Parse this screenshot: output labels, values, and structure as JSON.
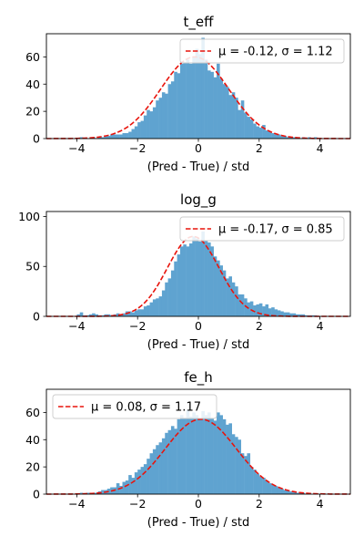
{
  "chart_data": [
    {
      "type": "histogram",
      "title": "t_eff",
      "xlabel": "(Pred - True) / std",
      "xlim": [
        -5,
        5
      ],
      "ylim": [
        0,
        77
      ],
      "xticks": [
        -4,
        -2,
        0,
        2,
        4
      ],
      "yticks": [
        0,
        20,
        40,
        60
      ],
      "xtick_labels": [
        "−4",
        "−2",
        "0",
        "2",
        "4"
      ],
      "ytick_labels": [
        "0",
        "20",
        "40",
        "60"
      ],
      "bin_width": 0.1,
      "bins_x": [
        -4.0,
        -3.9,
        -3.8,
        -3.7,
        -3.6,
        -3.5,
        -3.4,
        -3.3,
        -3.2,
        -3.1,
        -3.0,
        -2.9,
        -2.8,
        -2.7,
        -2.6,
        -2.5,
        -2.4,
        -2.3,
        -2.2,
        -2.1,
        -2.0,
        -1.9,
        -1.8,
        -1.7,
        -1.6,
        -1.5,
        -1.4,
        -1.3,
        -1.2,
        -1.1,
        -1.0,
        -0.9,
        -0.8,
        -0.7,
        -0.6,
        -0.5,
        -0.4,
        -0.3,
        -0.2,
        -0.1,
        0.0,
        0.1,
        0.2,
        0.3,
        0.4,
        0.5,
        0.6,
        0.7,
        0.8,
        0.9,
        1.0,
        1.1,
        1.2,
        1.3,
        1.4,
        1.5,
        1.6,
        1.7,
        1.8,
        1.9,
        2.0,
        2.1,
        2.2,
        2.3,
        2.4,
        2.5,
        2.6,
        2.7,
        2.8,
        2.9,
        3.0,
        3.1,
        3.2,
        3.3,
        3.4,
        3.5,
        3.6,
        3.7,
        3.8,
        3.9
      ],
      "counts": [
        0,
        1,
        0,
        0,
        0,
        1,
        0,
        1,
        1,
        2,
        2,
        3,
        3,
        3,
        3,
        4,
        4,
        5,
        7,
        9,
        12,
        13,
        17,
        21,
        20,
        23,
        28,
        30,
        34,
        33,
        40,
        42,
        49,
        48,
        55,
        56,
        58,
        55,
        60,
        66,
        62,
        74,
        58,
        50,
        49,
        45,
        55,
        44,
        40,
        38,
        32,
        34,
        30,
        21,
        28,
        19,
        16,
        14,
        11,
        9,
        8,
        10,
        6,
        5,
        4,
        3,
        3,
        2,
        2,
        1,
        1,
        1,
        1,
        0,
        1,
        0,
        1,
        0,
        1,
        0
      ],
      "fit": {
        "mu": -0.12,
        "sigma": 1.12,
        "amplitude": 60
      },
      "fit_label": "μ = -0.12, σ = 1.12",
      "legend_position": "upper right",
      "colors": {
        "bars": "#5fa3d0",
        "fit": "#e8140c"
      }
    },
    {
      "type": "histogram",
      "title": "log_g",
      "xlabel": "(Pred - True) / std",
      "xlim": [
        -5,
        5
      ],
      "ylim": [
        0,
        105
      ],
      "xticks": [
        -4,
        -2,
        0,
        2,
        4
      ],
      "yticks": [
        0,
        50,
        100
      ],
      "xtick_labels": [
        "−4",
        "−2",
        "0",
        "2",
        "4"
      ],
      "ytick_labels": [
        "0",
        "50",
        "100"
      ],
      "bin_width": 0.1,
      "bins_x": [
        -4.0,
        -3.9,
        -3.8,
        -3.7,
        -3.6,
        -3.5,
        -3.4,
        -3.3,
        -3.2,
        -3.1,
        -3.0,
        -2.9,
        -2.8,
        -2.7,
        -2.6,
        -2.5,
        -2.4,
        -2.3,
        -2.2,
        -2.1,
        -2.0,
        -1.9,
        -1.8,
        -1.7,
        -1.6,
        -1.5,
        -1.4,
        -1.3,
        -1.2,
        -1.1,
        -1.0,
        -0.9,
        -0.8,
        -0.7,
        -0.6,
        -0.5,
        -0.4,
        -0.3,
        -0.2,
        -0.1,
        0.0,
        0.1,
        0.2,
        0.3,
        0.4,
        0.5,
        0.6,
        0.7,
        0.8,
        0.9,
        1.0,
        1.1,
        1.2,
        1.3,
        1.4,
        1.5,
        1.6,
        1.7,
        1.8,
        1.9,
        2.0,
        2.1,
        2.2,
        2.3,
        2.4,
        2.5,
        2.6,
        2.7,
        2.8,
        2.9,
        3.0,
        3.1,
        3.2,
        3.3,
        3.4,
        3.5,
        3.6,
        3.7,
        3.8,
        3.9
      ],
      "counts": [
        2,
        4,
        1,
        1,
        2,
        3,
        2,
        1,
        1,
        2,
        2,
        1,
        2,
        3,
        2,
        3,
        5,
        5,
        4,
        6,
        7,
        7,
        10,
        11,
        14,
        17,
        18,
        20,
        26,
        34,
        38,
        46,
        55,
        62,
        70,
        72,
        70,
        73,
        80,
        78,
        75,
        85,
        76,
        74,
        70,
        60,
        56,
        51,
        46,
        38,
        40,
        34,
        30,
        22,
        22,
        18,
        14,
        15,
        11,
        12,
        13,
        10,
        12,
        8,
        9,
        7,
        6,
        5,
        4,
        4,
        3,
        3,
        2,
        2,
        2,
        1,
        1,
        1,
        1,
        0
      ],
      "fit": {
        "mu": -0.17,
        "sigma": 0.85,
        "amplitude": 80
      },
      "fit_label": "μ = -0.17, σ = 0.85",
      "legend_position": "upper right",
      "colors": {
        "bars": "#5fa3d0",
        "fit": "#e8140c"
      }
    },
    {
      "type": "histogram",
      "title": "fe_h",
      "xlabel": "(Pred - True) / std",
      "xlim": [
        -5,
        5
      ],
      "ylim": [
        0,
        77
      ],
      "xticks": [
        -4,
        -2,
        0,
        2,
        4
      ],
      "yticks": [
        0,
        20,
        40,
        60
      ],
      "xtick_labels": [
        "−4",
        "−2",
        "0",
        "2",
        "4"
      ],
      "ytick_labels": [
        "0",
        "20",
        "40",
        "60"
      ],
      "bin_width": 0.1,
      "bins_x": [
        -4.0,
        -3.9,
        -3.8,
        -3.7,
        -3.6,
        -3.5,
        -3.4,
        -3.3,
        -3.2,
        -3.1,
        -3.0,
        -2.9,
        -2.8,
        -2.7,
        -2.6,
        -2.5,
        -2.4,
        -2.3,
        -2.2,
        -2.1,
        -2.0,
        -1.9,
        -1.8,
        -1.7,
        -1.6,
        -1.5,
        -1.4,
        -1.3,
        -1.2,
        -1.1,
        -1.0,
        -0.9,
        -0.8,
        -0.7,
        -0.6,
        -0.5,
        -0.4,
        -0.3,
        -0.2,
        -0.1,
        0.0,
        0.1,
        0.2,
        0.3,
        0.4,
        0.5,
        0.6,
        0.7,
        0.8,
        0.9,
        1.0,
        1.1,
        1.2,
        1.3,
        1.4,
        1.5,
        1.6,
        1.7,
        1.8,
        1.9,
        2.0,
        2.1,
        2.2,
        2.3,
        2.4,
        2.5,
        2.6,
        2.7,
        2.8,
        2.9,
        3.0,
        3.1,
        3.2,
        3.3,
        3.4,
        3.5,
        3.6,
        3.7,
        3.8,
        3.9
      ],
      "counts": [
        0,
        1,
        0,
        1,
        1,
        1,
        1,
        2,
        3,
        3,
        4,
        5,
        5,
        8,
        6,
        9,
        10,
        14,
        12,
        16,
        18,
        20,
        22,
        26,
        30,
        33,
        36,
        38,
        41,
        45,
        47,
        50,
        48,
        55,
        58,
        56,
        62,
        57,
        60,
        58,
        55,
        61,
        58,
        60,
        56,
        54,
        60,
        58,
        55,
        51,
        52,
        44,
        42,
        40,
        30,
        28,
        30,
        20,
        18,
        15,
        13,
        12,
        10,
        8,
        7,
        6,
        5,
        4,
        3,
        3,
        2,
        2,
        1,
        1,
        1,
        0,
        1,
        0,
        0,
        0
      ],
      "fit": {
        "mu": 0.08,
        "sigma": 1.17,
        "amplitude": 55
      },
      "fit_label": "μ = 0.08, σ = 1.17",
      "legend_position": "upper left",
      "colors": {
        "bars": "#5fa3d0",
        "fit": "#e8140c"
      }
    }
  ]
}
